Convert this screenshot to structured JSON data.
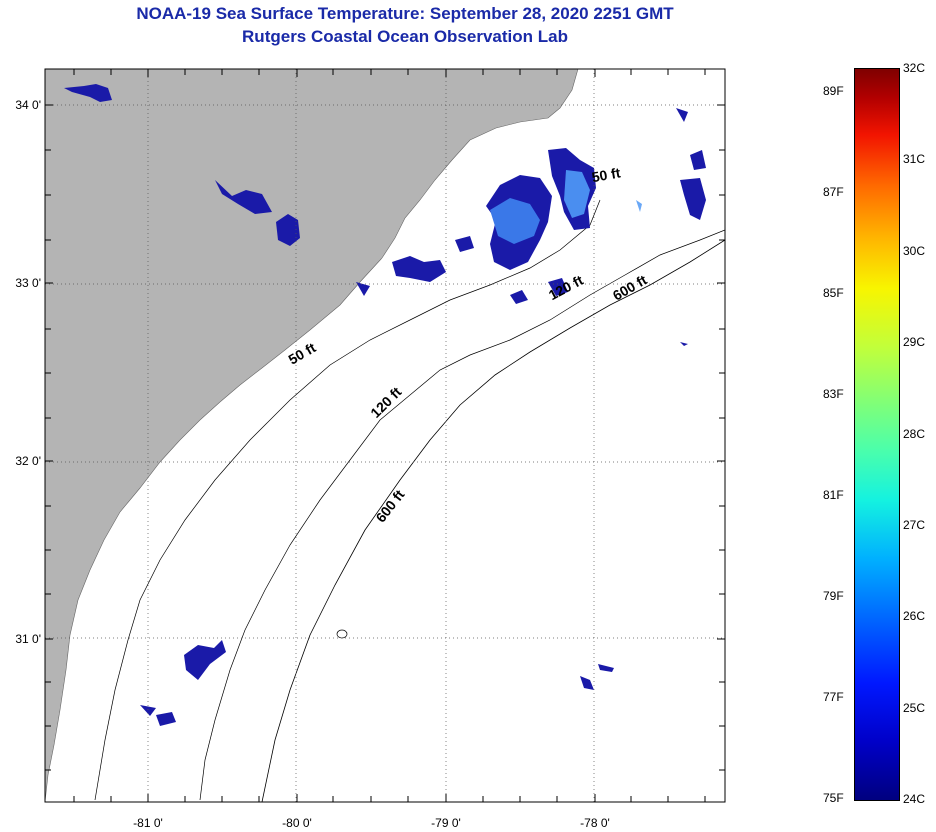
{
  "header": {
    "title": "NOAA-19 Sea Surface Temperature:  September 28, 2020 2251 GMT",
    "subtitle": "Rutgers Coastal Ocean Observation Lab"
  },
  "map": {
    "lat_ticks": [
      {
        "value": 34,
        "label": "34 0'"
      },
      {
        "value": 33,
        "label": "33 0'"
      },
      {
        "value": 32,
        "label": "32 0'"
      },
      {
        "value": 31,
        "label": "31 0'"
      }
    ],
    "lon_ticks": [
      {
        "value": -81,
        "label": "-81 0'"
      },
      {
        "value": -80,
        "label": "-80 0'"
      },
      {
        "value": -79,
        "label": "-79 0'"
      },
      {
        "value": -78,
        "label": "-78 0'"
      }
    ],
    "contour_labels": [
      {
        "text": "50 ft",
        "lon": -79.95,
        "lat": 32.58,
        "angle": -30
      },
      {
        "text": "120 ft",
        "lon": -79.38,
        "lat": 32.31,
        "angle": -45
      },
      {
        "text": "600 ft",
        "lon": -79.35,
        "lat": 31.73,
        "angle": -52
      },
      {
        "text": "120 ft",
        "lon": -78.18,
        "lat": 32.95,
        "angle": -28
      },
      {
        "text": "600 ft",
        "lon": -77.75,
        "lat": 32.95,
        "angle": -30
      },
      {
        "text": "50 ft",
        "lon": -77.92,
        "lat": 33.58,
        "angle": -10
      }
    ],
    "colors": {
      "land": "#b4b4b4",
      "ocean": "#ffffff",
      "sst_patch": "#1a1aa8",
      "sst_warm": "#3a78e8"
    }
  },
  "colorbar": {
    "fahrenheit": [
      "89F",
      "87F",
      "85F",
      "83F",
      "81F",
      "79F",
      "77F",
      "75F"
    ],
    "celsius": [
      "32C",
      "31C",
      "30C",
      "29C",
      "28C",
      "27C",
      "26C",
      "25C",
      "24C"
    ]
  }
}
